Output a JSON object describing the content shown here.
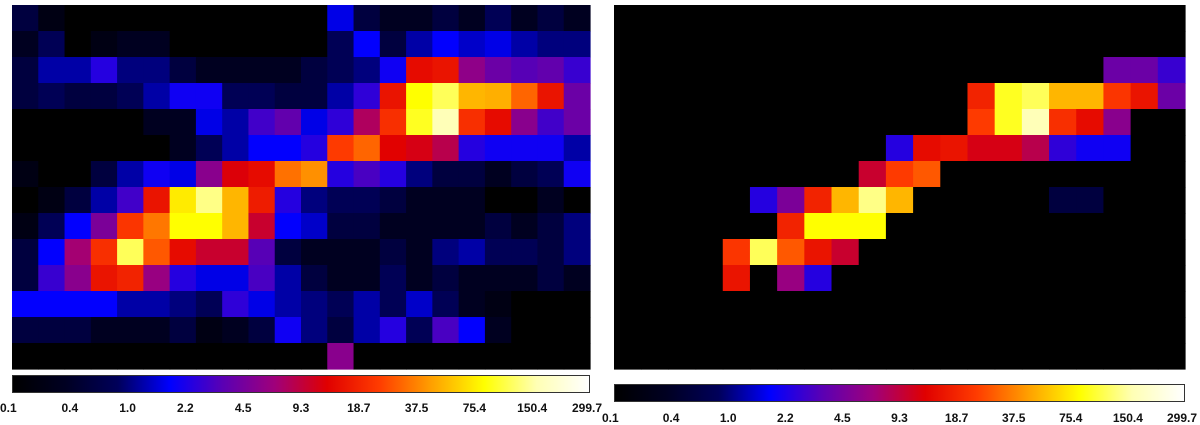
{
  "chart_data": [
    {
      "type": "heatmap",
      "title": "",
      "colormap": [
        "#000000",
        "#000022",
        "#00005a",
        "#0000ff",
        "#5a00b4",
        "#a0007a",
        "#e00000",
        "#ff3c00",
        "#ffa000",
        "#ffff00",
        "#ffffb4",
        "#ffffff"
      ],
      "scale": "log",
      "vmin": 0.1,
      "vmax": 299.7,
      "colorbar_ticks": [
        "0.1",
        "0.4",
        "1.0",
        "2.2",
        "4.5",
        "9.3",
        "18.7",
        "37.5",
        "75.4",
        "150.4",
        "299.7"
      ],
      "rows": 14,
      "cols": 22,
      "values": [
        [
          0.3,
          0.15,
          0.1,
          0.1,
          0.1,
          0.1,
          0.1,
          0.1,
          0.1,
          0.1,
          0.1,
          0.1,
          0.8,
          0.3,
          0.2,
          0.2,
          0.3,
          0.2,
          0.4,
          0.2,
          0.3,
          0.2
        ],
        [
          0.2,
          0.4,
          0.1,
          0.15,
          0.2,
          0.2,
          0.1,
          0.1,
          0.1,
          0.1,
          0.1,
          0.1,
          0.4,
          0.9,
          0.3,
          0.6,
          0.9,
          0.7,
          0.8,
          0.6,
          0.5,
          0.5
        ],
        [
          0.3,
          0.6,
          0.6,
          1.2,
          0.5,
          0.5,
          0.3,
          0.2,
          0.2,
          0.2,
          0.2,
          0.3,
          0.4,
          0.5,
          1.0,
          9.0,
          10.0,
          3.2,
          2.2,
          1.8,
          2.0,
          1.4
        ],
        [
          0.3,
          0.4,
          0.3,
          0.3,
          0.4,
          0.6,
          1.0,
          1.0,
          0.4,
          0.4,
          0.3,
          0.3,
          0.6,
          1.3,
          10.0,
          70.0,
          100.0,
          40.0,
          38.0,
          22.0,
          10.0,
          2.2
        ],
        [
          0.1,
          0.1,
          0.1,
          0.1,
          0.1,
          0.2,
          0.2,
          0.8,
          0.6,
          1.5,
          2.0,
          0.8,
          1.3,
          4.5,
          14.0,
          80.0,
          150.0,
          14.0,
          9.0,
          3.0,
          1.5,
          2.2
        ],
        [
          0.1,
          0.1,
          0.1,
          0.1,
          0.1,
          0.1,
          0.2,
          0.4,
          0.6,
          0.9,
          0.9,
          1.2,
          16.0,
          22.0,
          8.0,
          7.0,
          5.0,
          1.2,
          1.0,
          1.0,
          1.0,
          0.6
        ],
        [
          0.15,
          0.1,
          0.1,
          0.3,
          0.6,
          1.0,
          0.8,
          3.0,
          7.5,
          9.0,
          24.0,
          30.0,
          1.2,
          1.6,
          1.2,
          0.5,
          0.3,
          0.3,
          0.2,
          0.3,
          0.4,
          1.0
        ],
        [
          0.1,
          0.15,
          0.3,
          0.6,
          1.5,
          10.0,
          60.0,
          120.0,
          40.0,
          11.0,
          1.2,
          0.5,
          0.4,
          0.4,
          0.3,
          0.2,
          0.2,
          0.2,
          0.1,
          0.1,
          0.2,
          0.1
        ],
        [
          0.15,
          0.4,
          0.9,
          2.6,
          15.0,
          25.0,
          70.0,
          70.0,
          40.0,
          6.0,
          0.9,
          0.7,
          0.3,
          0.3,
          0.2,
          0.2,
          0.2,
          0.2,
          0.3,
          0.2,
          0.3,
          0.5
        ],
        [
          0.3,
          0.9,
          4.0,
          14.0,
          100.0,
          20.0,
          9.0,
          6.0,
          6.0,
          1.8,
          0.3,
          0.2,
          0.2,
          0.2,
          0.3,
          0.2,
          0.5,
          0.6,
          0.4,
          0.4,
          0.3,
          0.5
        ],
        [
          0.3,
          1.4,
          3.0,
          10.0,
          12.0,
          3.5,
          1.2,
          0.8,
          0.8,
          1.6,
          0.6,
          0.3,
          0.2,
          0.2,
          0.4,
          0.2,
          0.3,
          0.2,
          0.2,
          0.2,
          0.3,
          0.2
        ],
        [
          0.9,
          0.9,
          0.9,
          0.9,
          0.6,
          0.6,
          0.5,
          0.4,
          1.3,
          0.8,
          0.6,
          0.5,
          0.4,
          0.6,
          0.4,
          0.7,
          0.4,
          0.2,
          0.15,
          0.1,
          0.1,
          0.1
        ],
        [
          0.3,
          0.3,
          0.3,
          0.2,
          0.2,
          0.2,
          0.3,
          0.15,
          0.2,
          0.3,
          1.0,
          0.5,
          0.3,
          0.6,
          1.2,
          0.4,
          1.6,
          0.9,
          0.2,
          0.1,
          0.1,
          0.1
        ],
        [
          0.1,
          0.1,
          0.1,
          0.1,
          0.1,
          0.1,
          0.1,
          0.1,
          0.1,
          0.1,
          0.1,
          0.1,
          3.0,
          0.1,
          0.1,
          0.1,
          0.1,
          0.1,
          0.1,
          0.1,
          0.1,
          0.1
        ]
      ]
    },
    {
      "type": "heatmap",
      "title": "",
      "colormap": [
        "#000000",
        "#000022",
        "#00005a",
        "#0000ff",
        "#5a00b4",
        "#a0007a",
        "#e00000",
        "#ff3c00",
        "#ffa000",
        "#ffff00",
        "#ffffb4",
        "#ffffff"
      ],
      "scale": "log",
      "vmin": 0.1,
      "vmax": 299.7,
      "colorbar_ticks": [
        "0.1",
        "0.4",
        "1.0",
        "2.2",
        "4.5",
        "9.3",
        "18.7",
        "37.5",
        "75.4",
        "150.4",
        "299.7"
      ],
      "rows": 14,
      "cols": 21,
      "values": [
        [
          0.1,
          0.1,
          0.1,
          0.1,
          0.1,
          0.1,
          0.1,
          0.1,
          0.1,
          0.1,
          0.1,
          0.1,
          0.1,
          0.1,
          0.1,
          0.1,
          0.1,
          0.1,
          0.1,
          0.1,
          0.1
        ],
        [
          0.1,
          0.1,
          0.1,
          0.1,
          0.1,
          0.1,
          0.1,
          0.1,
          0.1,
          0.1,
          0.1,
          0.1,
          0.1,
          0.1,
          0.1,
          0.1,
          0.1,
          0.1,
          0.1,
          0.1,
          0.1
        ],
        [
          0.1,
          0.1,
          0.1,
          0.1,
          0.1,
          0.1,
          0.1,
          0.1,
          0.1,
          0.1,
          0.1,
          0.1,
          0.1,
          0.1,
          0.1,
          0.1,
          0.1,
          0.1,
          2.2,
          2.2,
          1.4
        ],
        [
          0.1,
          0.1,
          0.1,
          0.1,
          0.1,
          0.1,
          0.1,
          0.1,
          0.1,
          0.1,
          0.1,
          0.1,
          0.1,
          12.0,
          80.0,
          100.0,
          40.0,
          40.0,
          15.0,
          10.0,
          2.2
        ],
        [
          0.1,
          0.1,
          0.1,
          0.1,
          0.1,
          0.1,
          0.1,
          0.1,
          0.1,
          0.1,
          0.1,
          0.1,
          0.1,
          16.0,
          80.0,
          150.0,
          14.0,
          9.0,
          3.0,
          0.1,
          0.1
        ],
        [
          0.1,
          0.1,
          0.1,
          0.1,
          0.1,
          0.1,
          0.1,
          0.1,
          0.1,
          0.1,
          1.2,
          9.0,
          10.0,
          7.0,
          7.0,
          5.0,
          1.3,
          1.0,
          1.0,
          0.1,
          0.1
        ],
        [
          0.1,
          0.1,
          0.1,
          0.1,
          0.1,
          0.1,
          0.1,
          0.1,
          0.1,
          6.0,
          16.0,
          20.0,
          0.1,
          0.1,
          0.1,
          0.1,
          0.1,
          0.1,
          0.1,
          0.1,
          0.1
        ],
        [
          0.1,
          0.1,
          0.1,
          0.1,
          0.1,
          1.2,
          2.6,
          12.0,
          40.0,
          120.0,
          40.0,
          0.1,
          0.1,
          0.1,
          0.1,
          0.1,
          0.3,
          0.3,
          0.1,
          0.1,
          0.1
        ],
        [
          0.1,
          0.1,
          0.1,
          0.1,
          0.1,
          0.1,
          12.0,
          70.0,
          70.0,
          70.0,
          0.1,
          0.1,
          0.1,
          0.1,
          0.1,
          0.1,
          0.1,
          0.1,
          0.1,
          0.1,
          0.1
        ],
        [
          0.1,
          0.1,
          0.1,
          0.1,
          15.0,
          100.0,
          20.0,
          10.0,
          6.0,
          0.1,
          0.1,
          0.1,
          0.1,
          0.1,
          0.1,
          0.1,
          0.1,
          0.1,
          0.1,
          0.1,
          0.1
        ],
        [
          0.1,
          0.1,
          0.1,
          0.1,
          10.0,
          0.1,
          3.5,
          1.2,
          0.1,
          0.1,
          0.1,
          0.1,
          0.1,
          0.1,
          0.1,
          0.1,
          0.1,
          0.1,
          0.1,
          0.1,
          0.1
        ],
        [
          0.1,
          0.1,
          0.1,
          0.1,
          0.1,
          0.1,
          0.1,
          0.1,
          0.1,
          0.1,
          0.1,
          0.1,
          0.1,
          0.1,
          0.1,
          0.1,
          0.1,
          0.1,
          0.1,
          0.1,
          0.1
        ],
        [
          0.1,
          0.1,
          0.1,
          0.1,
          0.1,
          0.1,
          0.1,
          0.1,
          0.1,
          0.1,
          0.1,
          0.1,
          0.1,
          0.1,
          0.1,
          0.1,
          0.1,
          0.1,
          0.1,
          0.1,
          0.1
        ],
        [
          0.1,
          0.1,
          0.1,
          0.1,
          0.1,
          0.1,
          0.1,
          0.1,
          0.1,
          0.1,
          0.1,
          0.1,
          0.1,
          0.1,
          0.1,
          0.1,
          0.1,
          0.1,
          0.1,
          0.1,
          0.1
        ]
      ]
    }
  ]
}
